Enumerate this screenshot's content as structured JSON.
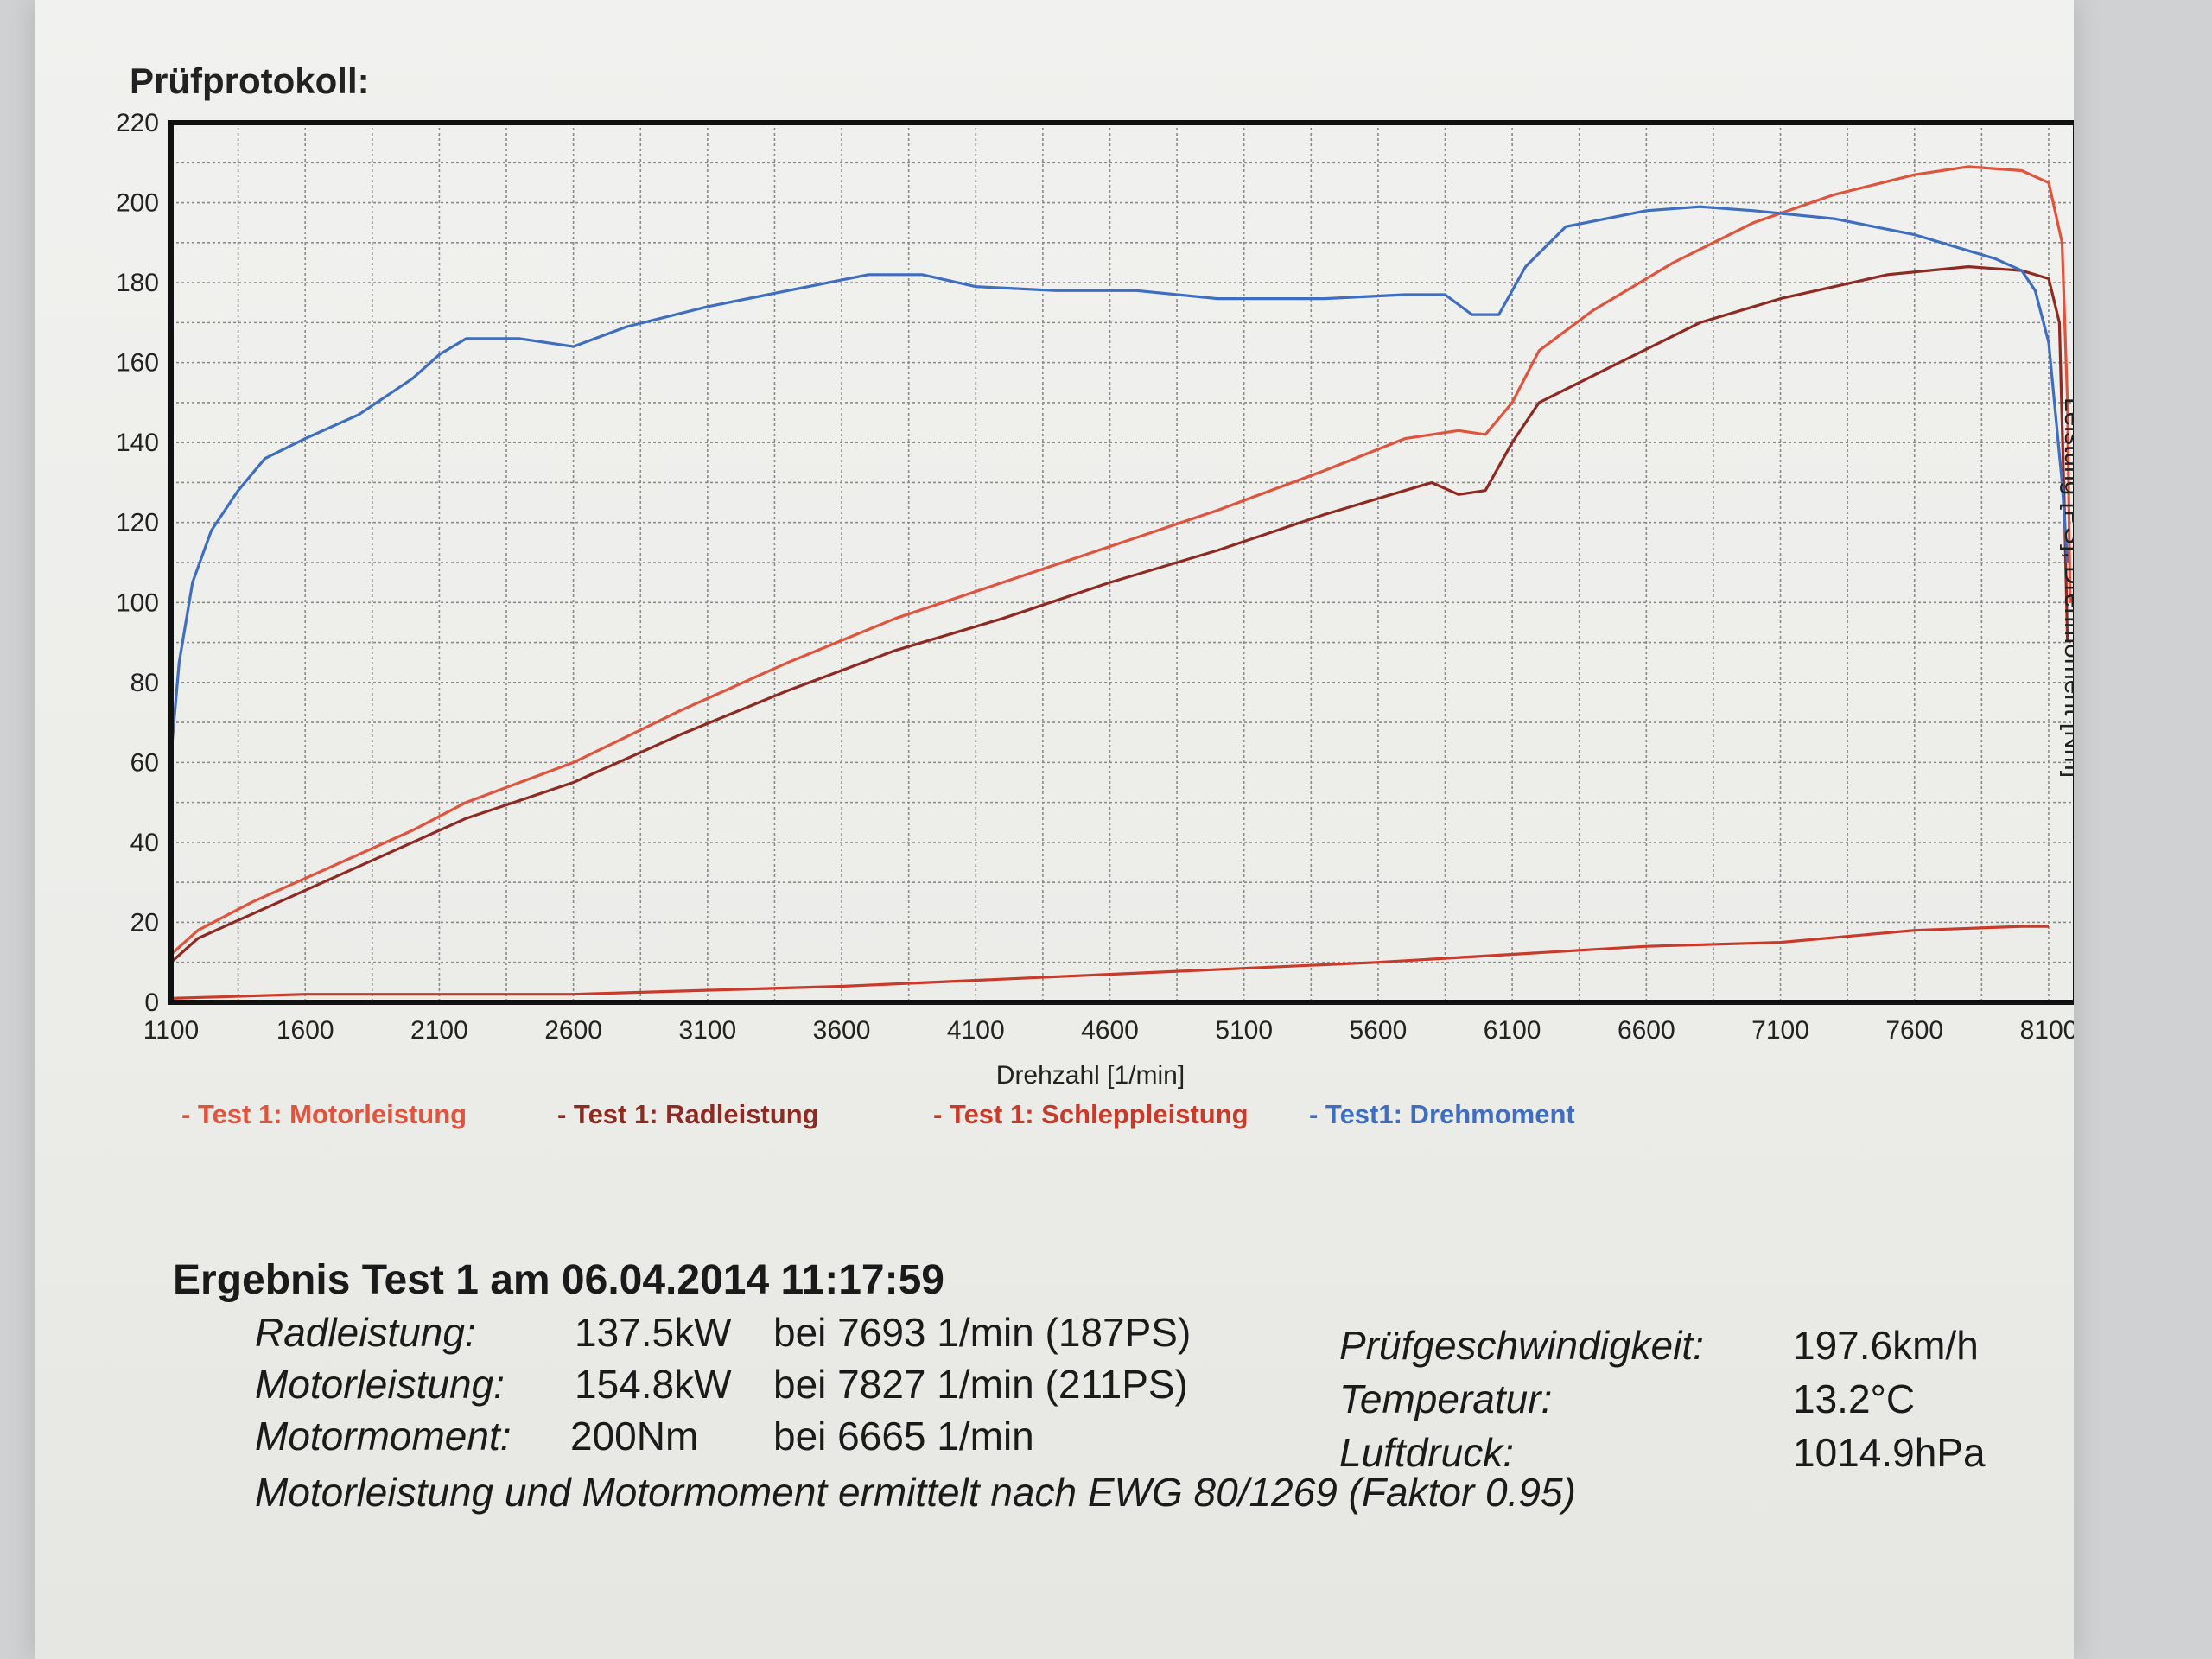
{
  "chart_data": {
    "type": "line",
    "title": "Prüfprotokoll:",
    "xlabel": "Drehzahl [1/min]",
    "ylabel": "Leistung [PS], Drehmoment [Nm]",
    "xlim": [
      1100,
      8200
    ],
    "ylim": [
      0,
      220
    ],
    "x_ticks": [
      "1100",
      "1600",
      "2100",
      "2600",
      "3100",
      "3600",
      "4100",
      "4600",
      "5100",
      "5600",
      "6100",
      "6600",
      "7100",
      "7600",
      "8100"
    ],
    "y_ticks": [
      "0",
      "20",
      "40",
      "60",
      "80",
      "100",
      "120",
      "140",
      "160",
      "180",
      "200",
      "220"
    ],
    "grid": true,
    "series": [
      {
        "name": "- Test 1: Motorleistung",
        "color": "#e0533d",
        "points": [
          [
            1100,
            12
          ],
          [
            1200,
            18
          ],
          [
            1400,
            25
          ],
          [
            1600,
            31
          ],
          [
            2000,
            43
          ],
          [
            2200,
            50
          ],
          [
            2600,
            60
          ],
          [
            3000,
            73
          ],
          [
            3400,
            85
          ],
          [
            3800,
            96
          ],
          [
            4200,
            105
          ],
          [
            4600,
            114
          ],
          [
            5000,
            123
          ],
          [
            5400,
            133
          ],
          [
            5700,
            141
          ],
          [
            5900,
            143
          ],
          [
            6000,
            142
          ],
          [
            6100,
            150
          ],
          [
            6200,
            163
          ],
          [
            6400,
            173
          ],
          [
            6700,
            185
          ],
          [
            7000,
            195
          ],
          [
            7300,
            202
          ],
          [
            7600,
            207
          ],
          [
            7800,
            209
          ],
          [
            8000,
            208
          ],
          [
            8100,
            205
          ],
          [
            8150,
            190
          ],
          [
            8170,
            150
          ],
          [
            8180,
            100
          ]
        ]
      },
      {
        "name": "- Test 1: Radleistung",
        "color": "#8e2a22",
        "points": [
          [
            1100,
            10
          ],
          [
            1200,
            16
          ],
          [
            1400,
            22
          ],
          [
            1600,
            28
          ],
          [
            2000,
            40
          ],
          [
            2200,
            46
          ],
          [
            2600,
            55
          ],
          [
            3000,
            67
          ],
          [
            3400,
            78
          ],
          [
            3800,
            88
          ],
          [
            4200,
            96
          ],
          [
            4600,
            105
          ],
          [
            5000,
            113
          ],
          [
            5400,
            122
          ],
          [
            5700,
            128
          ],
          [
            5800,
            130
          ],
          [
            5900,
            127
          ],
          [
            6000,
            128
          ],
          [
            6100,
            140
          ],
          [
            6200,
            150
          ],
          [
            6500,
            160
          ],
          [
            6800,
            170
          ],
          [
            7100,
            176
          ],
          [
            7500,
            182
          ],
          [
            7800,
            184
          ],
          [
            8000,
            183
          ],
          [
            8100,
            181
          ],
          [
            8140,
            170
          ],
          [
            8160,
            120
          ],
          [
            8170,
            90
          ]
        ]
      },
      {
        "name": "- Test 1: Schleppleistung",
        "color": "#c93a2b",
        "points": [
          [
            1100,
            1
          ],
          [
            1600,
            2
          ],
          [
            2600,
            2
          ],
          [
            3600,
            4
          ],
          [
            4600,
            7
          ],
          [
            5600,
            10
          ],
          [
            6100,
            12
          ],
          [
            6600,
            14
          ],
          [
            7100,
            15
          ],
          [
            7600,
            18
          ],
          [
            8000,
            19
          ],
          [
            8100,
            19
          ]
        ]
      },
      {
        "name": "- Test1: Drehmoment",
        "color": "#3f6ec0",
        "points": [
          [
            1100,
            62
          ],
          [
            1130,
            85
          ],
          [
            1180,
            105
          ],
          [
            1250,
            118
          ],
          [
            1350,
            128
          ],
          [
            1450,
            136
          ],
          [
            1600,
            141
          ],
          [
            1800,
            147
          ],
          [
            2000,
            156
          ],
          [
            2100,
            162
          ],
          [
            2200,
            166
          ],
          [
            2400,
            166
          ],
          [
            2600,
            164
          ],
          [
            2800,
            169
          ],
          [
            3100,
            174
          ],
          [
            3400,
            178
          ],
          [
            3700,
            182
          ],
          [
            3900,
            182
          ],
          [
            4100,
            179
          ],
          [
            4400,
            178
          ],
          [
            4700,
            178
          ],
          [
            5000,
            176
          ],
          [
            5400,
            176
          ],
          [
            5700,
            177
          ],
          [
            5850,
            177
          ],
          [
            5950,
            172
          ],
          [
            6050,
            172
          ],
          [
            6150,
            184
          ],
          [
            6300,
            194
          ],
          [
            6600,
            198
          ],
          [
            6800,
            199
          ],
          [
            7000,
            198
          ],
          [
            7300,
            196
          ],
          [
            7600,
            192
          ],
          [
            7900,
            186
          ],
          [
            8000,
            183
          ],
          [
            8050,
            178
          ],
          [
            8100,
            165
          ],
          [
            8150,
            130
          ],
          [
            8170,
            110
          ]
        ]
      }
    ]
  },
  "results": {
    "heading": "Ergebnis Test 1 am 06.04.2014 11:17:59",
    "rows": [
      {
        "label": "Radleistung:",
        "value": "137.5kW",
        "detail": "bei 7693 1/min (187PS)"
      },
      {
        "label": "Motorleistung:",
        "value": "154.8kW",
        "detail": "bei 7827 1/min (211PS)"
      },
      {
        "label": "Motormoment:",
        "value": "200Nm",
        "detail": "bei 6665 1/min"
      }
    ],
    "conditions": [
      {
        "label": "Prüfgeschwindigkeit:",
        "value": "197.6km/h"
      },
      {
        "label": "Temperatur:",
        "value": "13.2°C"
      },
      {
        "label": "Luftdruck:",
        "value": "1014.9hPa"
      }
    ],
    "footnote": "Motorleistung und Motormoment ermittelt nach EWG 80/1269 (Faktor 0.95)"
  }
}
